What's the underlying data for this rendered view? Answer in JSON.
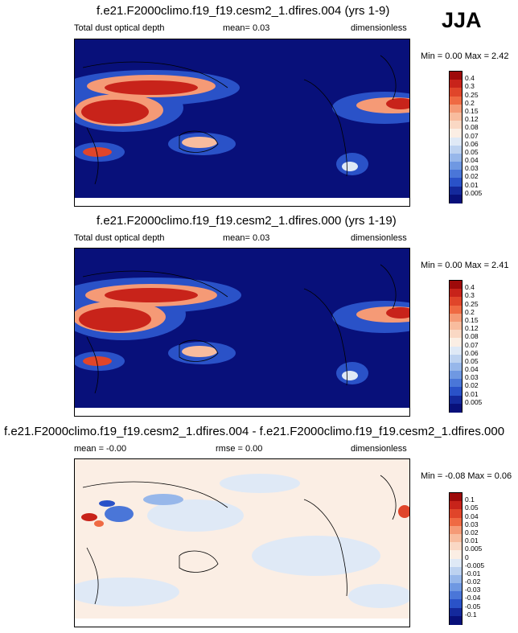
{
  "season": "JJA",
  "panels": [
    {
      "title": "f.e21.F2000climo.f19_f19.cesm2_1.dfires.004 (yrs 1-9)",
      "left_label": "Total dust optical depth",
      "center_label": "mean=  0.03",
      "units": "dimensionless",
      "minmax": "Min =  0.00 Max =  2.42"
    },
    {
      "title": "f.e21.F2000climo.f19_f19.cesm2_1.dfires.000 (yrs 1-19)",
      "left_label": "Total dust optical depth",
      "center_label": "mean=  0.03",
      "units": "dimensionless",
      "minmax": "Min =  0.00 Max =  2.41"
    },
    {
      "title": "f.e21.F2000climo.f19_f19.cesm2_1.dfires.004 - f.e21.F2000climo.f19_f19.cesm2_1.dfires.000",
      "left_label": "mean = -0.00",
      "center_label": "rmse =  0.00",
      "units": "dimensionless",
      "minmax": "Min = -0.08 Max =  0.06"
    }
  ],
  "chart_data": [
    {
      "type": "heatmap",
      "title": "f.e21.F2000climo.f19_f19.cesm2_1.dfires.004 (yrs 1-9)",
      "field": "Total dust optical depth",
      "colorbar": {
        "levels": [
          "0.4",
          "0.3",
          "0.25",
          "0.2",
          "0.15",
          "0.12",
          "0.08",
          "0.07",
          "0.06",
          "0.05",
          "0.04",
          "0.03",
          "0.02",
          "0.01",
          "0.005"
        ],
        "colors": [
          "#9e0a0a",
          "#c8231a",
          "#e0452a",
          "#ef6a43",
          "#f59a76",
          "#f8bc9e",
          "#fad8c4",
          "#fbeee4",
          "#dfe9f6",
          "#bdd2f0",
          "#97b7ea",
          "#6f98e2",
          "#4a76d8",
          "#2a52c8",
          "#14299c",
          "#08107a"
        ]
      },
      "min": 0.0,
      "max": 2.42,
      "mean": 0.03
    },
    {
      "type": "heatmap",
      "title": "f.e21.F2000climo.f19_f19.cesm2_1.dfires.000 (yrs 1-19)",
      "field": "Total dust optical depth",
      "colorbar": {
        "levels": [
          "0.4",
          "0.3",
          "0.25",
          "0.2",
          "0.15",
          "0.12",
          "0.08",
          "0.07",
          "0.06",
          "0.05",
          "0.04",
          "0.03",
          "0.02",
          "0.01",
          "0.005"
        ],
        "colors": [
          "#9e0a0a",
          "#c8231a",
          "#e0452a",
          "#ef6a43",
          "#f59a76",
          "#f8bc9e",
          "#fad8c4",
          "#fbeee4",
          "#dfe9f6",
          "#bdd2f0",
          "#97b7ea",
          "#6f98e2",
          "#4a76d8",
          "#2a52c8",
          "#14299c",
          "#08107a"
        ]
      },
      "min": 0.0,
      "max": 2.41,
      "mean": 0.03
    },
    {
      "type": "heatmap",
      "title": "f.e21.F2000climo.f19_f19.cesm2_1.dfires.004 - f.e21.F2000climo.f19_f19.cesm2_1.dfires.000",
      "colorbar": {
        "levels": [
          "0.1",
          "0.05",
          "0.04",
          "0.03",
          "0.02",
          "0.01",
          "0.005",
          "0",
          "-0.005",
          "-0.01",
          "-0.02",
          "-0.03",
          "-0.04",
          "-0.05",
          "-0.1"
        ],
        "colors": [
          "#9e0a0a",
          "#c8231a",
          "#e0452a",
          "#ef6a43",
          "#f59a76",
          "#f8bc9e",
          "#fad8c4",
          "#fbeee4",
          "#dfe9f6",
          "#bdd2f0",
          "#97b7ea",
          "#6f98e2",
          "#4a76d8",
          "#2a52c8",
          "#14299c",
          "#08107a"
        ]
      },
      "min": -0.08,
      "max": 0.06,
      "mean": -0.0,
      "rmse": 0.0
    }
  ]
}
